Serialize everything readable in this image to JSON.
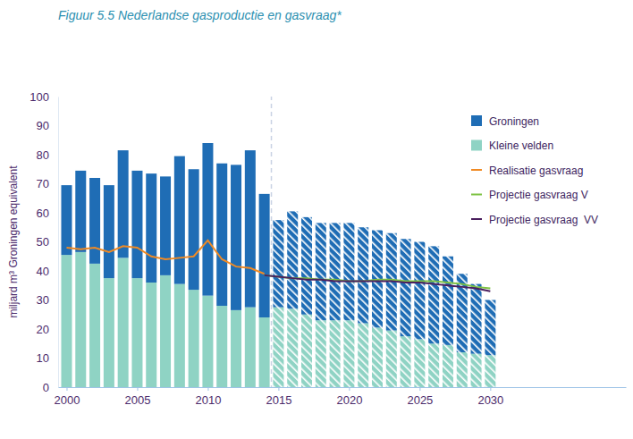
{
  "chart_data": {
    "type": "bar",
    "title": "Figuur 5.5 Nederlandse gasproductie en gasvraag*",
    "y_label": "miljard m³ Groningen equivalent",
    "stacked": true,
    "legend": "upper right",
    "grid": false,
    "x": [
      2000,
      2001,
      2002,
      2003,
      2004,
      2005,
      2006,
      2007,
      2008,
      2009,
      2010,
      2011,
      2012,
      2013,
      2014,
      2015,
      2016,
      2017,
      2018,
      2019,
      2020,
      2021,
      2022,
      2023,
      2024,
      2025,
      2026,
      2027,
      2028,
      2029,
      2030
    ],
    "xlim": [
      1999.4,
      2039.6
    ],
    "xticks": [
      2000,
      2005,
      2010,
      2015,
      2020,
      2025,
      2030
    ],
    "ylim": [
      0,
      100
    ],
    "yticks": [
      0,
      10,
      20,
      30,
      40,
      50,
      60,
      70,
      80,
      90,
      100
    ],
    "series": [
      {
        "name": "Groningen",
        "type": "bar",
        "color": "#1f6db5",
        "values": [
          24,
          28,
          29.5,
          32,
          37,
          37,
          37.5,
          34,
          44,
          41.5,
          52.5,
          49,
          50,
          54,
          42.5,
          30,
          33.5,
          33.5,
          33.5,
          33.5,
          33.5,
          33,
          33.5,
          33.5,
          33.5,
          33.5,
          33.5,
          30.5,
          27,
          24,
          19
        ]
      },
      {
        "name": "Kleine velden",
        "type": "bar",
        "color": "#8fd3c4",
        "values": [
          45.5,
          46.5,
          42.5,
          37.5,
          44.5,
          37.5,
          36,
          38.5,
          35.5,
          33.5,
          31.5,
          28,
          26.5,
          27.5,
          24,
          27.5,
          27,
          25,
          23,
          23,
          23,
          22,
          20.5,
          19.5,
          17.5,
          16.5,
          15,
          14.5,
          12,
          11.5,
          11
        ]
      },
      {
        "name": "Realisatie gasvraag",
        "type": "line",
        "color": "#f08a24",
        "values": [
          48,
          47.5,
          48,
          46.5,
          48.5,
          48,
          45,
          44,
          44.5,
          45,
          50.5,
          44,
          41.5,
          41,
          39,
          null,
          null,
          null,
          null,
          null,
          null,
          null,
          null,
          null,
          null,
          null,
          null,
          null,
          null,
          null,
          null
        ]
      },
      {
        "name": "Projectie gasvraag V",
        "type": "line",
        "color": "#7dc242",
        "values": [
          null,
          null,
          null,
          null,
          null,
          null,
          null,
          null,
          null,
          null,
          null,
          null,
          null,
          null,
          38.5,
          38,
          37.5,
          37.5,
          37,
          37,
          36.5,
          36.5,
          37,
          37,
          36.5,
          36.5,
          36.5,
          36,
          35.5,
          34.5,
          34
        ]
      },
      {
        "name": "Projectie gasvraag  VV",
        "type": "line",
        "color": "#4b1f5e",
        "values": [
          null,
          null,
          null,
          null,
          null,
          null,
          null,
          null,
          null,
          null,
          null,
          null,
          null,
          null,
          38.5,
          38,
          37.5,
          37,
          37,
          36.5,
          36.5,
          36.5,
          36.5,
          36.5,
          36,
          36,
          35.5,
          35,
          34.5,
          34,
          33
        ]
      }
    ]
  }
}
